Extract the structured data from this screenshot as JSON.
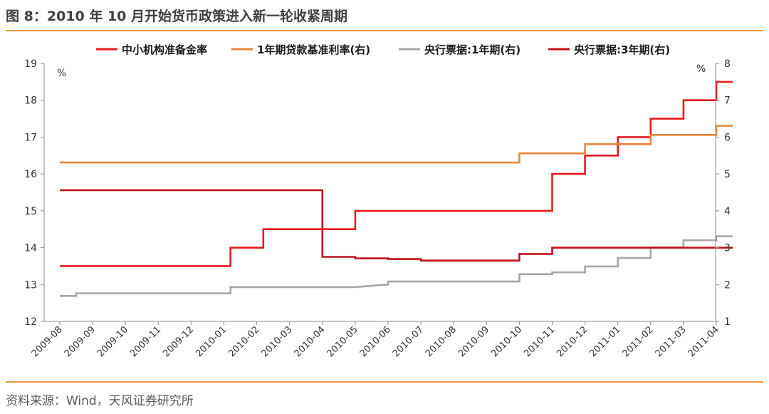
{
  "title": "图 8：2010 年 10 月开始货币政策进入新一轮收紧周期",
  "source": "资料来源：Wind，天风证券研究所",
  "chart_data": {
    "type": "line",
    "step": true,
    "left_unit": "%",
    "right_unit": "%",
    "ylim_left": [
      12,
      19
    ],
    "ylim_right": [
      1,
      8
    ],
    "yticks_left": [
      "12",
      "13",
      "14",
      "15",
      "16",
      "17",
      "18",
      "19"
    ],
    "yticks_right": [
      "1",
      "2",
      "3",
      "4",
      "5",
      "6",
      "7",
      "8"
    ],
    "categories": [
      "2009-08",
      "2009-09",
      "2009-10",
      "2009-11",
      "2009-12",
      "2010-01",
      "2010-02",
      "2010-03",
      "2010-04",
      "2010-05",
      "2010-06",
      "2010-07",
      "2010-08",
      "2010-09",
      "2010-10",
      "2010-11",
      "2010-12",
      "2011-01",
      "2011-02",
      "2011-03",
      "2011-04"
    ],
    "xlim": [
      0,
      20.6
    ],
    "legend_position": "top",
    "grid": false,
    "series": [
      {
        "name": "中小机构准备金率",
        "axis": "left",
        "color": "#E8191D",
        "points": [
          [
            0,
            13.5
          ],
          [
            5.2,
            13.5
          ],
          [
            5.2,
            14.0
          ],
          [
            6.2,
            14.0
          ],
          [
            6.2,
            14.5
          ],
          [
            9.0,
            14.5
          ],
          [
            9.0,
            15.0
          ],
          [
            15.0,
            15.0
          ],
          [
            15.0,
            16.0
          ],
          [
            16.0,
            16.0
          ],
          [
            16.0,
            16.5
          ],
          [
            17.0,
            16.5
          ],
          [
            17.0,
            17.0
          ],
          [
            18.0,
            17.0
          ],
          [
            18.0,
            17.5
          ],
          [
            19.0,
            17.5
          ],
          [
            19.0,
            18.0
          ],
          [
            20.0,
            18.0
          ],
          [
            20.0,
            18.5
          ],
          [
            20.5,
            18.5
          ]
        ]
      },
      {
        "name": "1年期贷款基准利率(右)",
        "axis": "right",
        "color": "#E8863A",
        "points": [
          [
            0,
            5.31
          ],
          [
            14.0,
            5.31
          ],
          [
            14.0,
            5.56
          ],
          [
            16.0,
            5.56
          ],
          [
            16.0,
            5.81
          ],
          [
            18.0,
            5.81
          ],
          [
            18.0,
            6.06
          ],
          [
            20.0,
            6.06
          ],
          [
            20.0,
            6.31
          ],
          [
            20.5,
            6.31
          ]
        ]
      },
      {
        "name": "央行票据:1年期(右)",
        "axis": "right",
        "color": "#A6A6A6",
        "points": [
          [
            0,
            1.69
          ],
          [
            0.5,
            1.69
          ],
          [
            0.5,
            1.76
          ],
          [
            5.2,
            1.76
          ],
          [
            5.2,
            1.93
          ],
          [
            9.0,
            1.93
          ],
          [
            10.0,
            2.0
          ],
          [
            10.0,
            2.08
          ],
          [
            14.0,
            2.08
          ],
          [
            14.0,
            2.28
          ],
          [
            15.0,
            2.28
          ],
          [
            15.0,
            2.33
          ],
          [
            16.0,
            2.33
          ],
          [
            16.0,
            2.49
          ],
          [
            17.0,
            2.49
          ],
          [
            17.0,
            2.72
          ],
          [
            18.0,
            2.72
          ],
          [
            18.0,
            3.01
          ],
          [
            19.0,
            3.01
          ],
          [
            19.0,
            3.2
          ],
          [
            20.0,
            3.2
          ],
          [
            20.0,
            3.31
          ],
          [
            20.5,
            3.31
          ]
        ]
      },
      {
        "name": "央行票据:3年期(右)",
        "axis": "right",
        "color": "#C0121A",
        "points": [
          [
            0,
            4.56
          ],
          [
            8.0,
            4.56
          ],
          [
            8.0,
            2.75
          ],
          [
            9.0,
            2.75
          ],
          [
            9.0,
            2.71
          ],
          [
            10.0,
            2.71
          ],
          [
            10.0,
            2.69
          ],
          [
            11.0,
            2.69
          ],
          [
            11.0,
            2.65
          ],
          [
            14.0,
            2.65
          ],
          [
            14.0,
            2.83
          ],
          [
            15.0,
            2.83
          ],
          [
            15.0,
            3.0
          ],
          [
            20.5,
            3.0
          ]
        ]
      }
    ]
  }
}
